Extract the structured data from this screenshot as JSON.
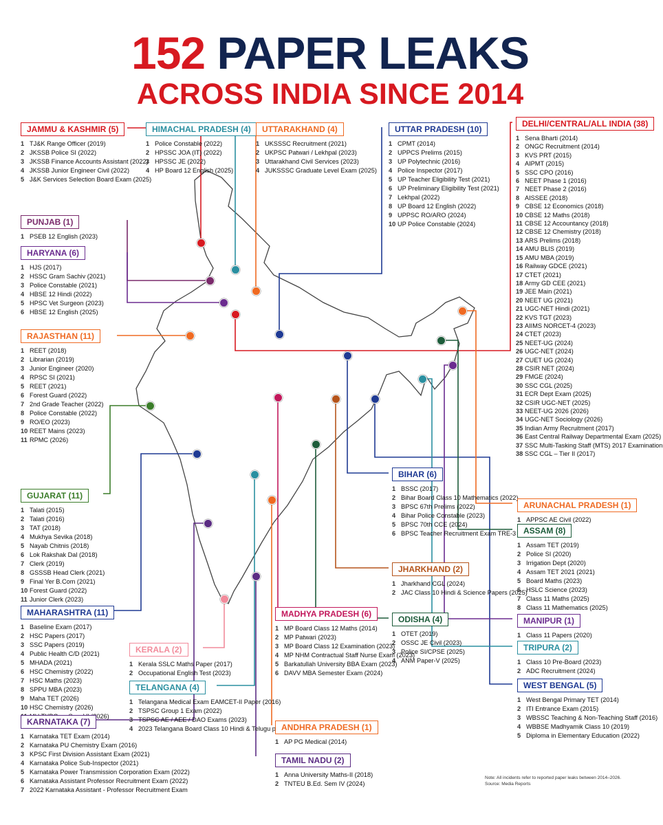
{
  "title": {
    "number": "152",
    "rest": "PAPER LEAKS",
    "subtitle": "ACROSS INDIA SINCE 2014"
  },
  "colors": {
    "title_red": "#d71920",
    "title_navy": "#12244f",
    "jk": "#d71920",
    "punjab": "#7a2a6b",
    "haryana": "#6b2c8f",
    "rajasthan": "#ef6a22",
    "gujarat": "#3b7d2a",
    "maharashtra": "#1f3a93",
    "karnataka": "#5b2c83",
    "kerala": "#f28b9b",
    "telangana": "#2a8fa0",
    "himachal": "#2a8fa0",
    "uttarakhand": "#ef6a22",
    "up": "#1f3a93",
    "delhi": "#d71920",
    "arunachal": "#ef6a22",
    "assam": "#1d5c3a",
    "manipur": "#6b2c8f",
    "tripura": "#2a8fa0",
    "westbengal": "#1f3a93",
    "bihar": "#1f3a93",
    "jharkhand": "#b5541b",
    "odisha": "#1d5c3a",
    "mp": "#c2185b",
    "ap": "#ef6a22",
    "tn": "#5b2c83",
    "map_fill": "#ffffff",
    "map_stroke": "#444444"
  },
  "states": {
    "jk": {
      "name": "JAMMU & KASHMIR (5)",
      "items": [
        {
          "n": "1",
          "text": "TJ&K Range Officer (2019)"
        },
        {
          "n": "2",
          "text": "JKSSB Police SI (2022)"
        },
        {
          "n": "3",
          "text": "JKSSB Finance Accounts Assistant (2022)"
        },
        {
          "n": "4",
          "text": "JKSSB Junior Engineer Civil (2022)"
        },
        {
          "n": "5",
          "text": "J&K Services Selection Board Exam (2025)"
        }
      ]
    },
    "punjab": {
      "name": "PUNJAB (1)",
      "items": [
        {
          "n": "1",
          "text": "PSEB 12 English (2023)"
        }
      ]
    },
    "haryana": {
      "name": "HARYANA (6)",
      "items": [
        {
          "n": "1",
          "text": "HJS (2017)"
        },
        {
          "n": "2",
          "text": "HSSC Gram Sachiv (2021)"
        },
        {
          "n": "3",
          "text": "Police Constable (2021)"
        },
        {
          "n": "4",
          "text": "HBSE 12 Hindi (2022)"
        },
        {
          "n": "5",
          "text": "HPSC Vet Surgeon (2023)"
        },
        {
          "n": "6",
          "text": "HBSE 12 English (2025)"
        }
      ]
    },
    "rajasthan": {
      "name": "RAJASTHAN (11)",
      "items": [
        {
          "n": "1",
          "text": "REET (2018)"
        },
        {
          "n": "2",
          "text": "Librarian (2019)"
        },
        {
          "n": "3",
          "text": "Junior Engineer (2020)"
        },
        {
          "n": "4",
          "text": "RPSC SI (2021)"
        },
        {
          "n": "5",
          "text": "REET (2021)"
        },
        {
          "n": "6",
          "text": "Forest Guard (2022)"
        },
        {
          "n": "7",
          "text": "2nd Grade Teacher (2022)"
        },
        {
          "n": "8",
          "text": "Police Constable (2022)"
        },
        {
          "n": "9",
          "text": "RO/EO (2023)"
        },
        {
          "n": "10",
          "text": "REET Mains (2023)"
        },
        {
          "n": "11",
          "text": "RPMC (2026)"
        }
      ]
    },
    "gujarat": {
      "name": "GUJARAT (11)",
      "items": [
        {
          "n": "1",
          "text": "Talati (2015)"
        },
        {
          "n": "2",
          "text": "Talati (2016)"
        },
        {
          "n": "3",
          "text": "TAT (2018)"
        },
        {
          "n": "4",
          "text": "Mukhya Sevika (2018)"
        },
        {
          "n": "5",
          "text": "Nayab Chitnis (2018)"
        },
        {
          "n": "6",
          "text": "Lok Rakshak Dal (2018)"
        },
        {
          "n": "7",
          "text": "Clerk (2019)"
        },
        {
          "n": "8",
          "text": "GSSSB Head Clerk (2021)"
        },
        {
          "n": "9",
          "text": "Final Yer B.Com (2021)"
        },
        {
          "n": "10",
          "text": "Forest Guard (2022)"
        },
        {
          "n": "11",
          "text": "Junior Clerk (2023)"
        }
      ]
    },
    "maharashtra": {
      "name": "MAHARASHTRA (11)",
      "items": [
        {
          "n": "1",
          "text": "Baseline Exam (2017)"
        },
        {
          "n": "2",
          "text": "HSC Papers (2017)"
        },
        {
          "n": "3",
          "text": "SSC Papers (2019)"
        },
        {
          "n": "4",
          "text": "Public Health C/D (2021)"
        },
        {
          "n": "5",
          "text": "MHADA (2021)"
        },
        {
          "n": "6",
          "text": "HSC Chemistry (2022)"
        },
        {
          "n": "7",
          "text": "HSC Maths (2023)"
        },
        {
          "n": "8",
          "text": "SPPU MBA (2023)"
        },
        {
          "n": "9",
          "text": "Maha TET (2026)"
        },
        {
          "n": "10",
          "text": "HSC Chemistry (2026)"
        },
        {
          "n": "11",
          "text": "MU TYBCom Sem VI (2026)"
        }
      ]
    },
    "karnataka": {
      "name": "KARNATAKA (7)",
      "items": [
        {
          "n": "1",
          "text": "Karnataka TET Exam (2014)"
        },
        {
          "n": "2",
          "text": "Karnataka PU Chemistry Exam (2016)"
        },
        {
          "n": "3",
          "text": "KPSC First Division Assistant Exam (2021)"
        },
        {
          "n": "4",
          "text": "Karnataka Police Sub-Inspector (2021)"
        },
        {
          "n": "5",
          "text": "Karnataka Power Transmission Corporation Exam (2022)"
        },
        {
          "n": "6",
          "text": "Karnataka Assistant Professor Recruitment Exam (2022)"
        },
        {
          "n": "7",
          "text": "2022 Karnataka Assistant - Professor Recruitment Exam"
        }
      ]
    },
    "kerala": {
      "name": "KERALA (2)",
      "items": [
        {
          "n": "1",
          "text": "Kerala SSLC Maths Paper (2017)"
        },
        {
          "n": "2",
          "text": "Occupational English Test (2023)"
        }
      ]
    },
    "telangana": {
      "name": "TELANGANA (4)",
      "items": [
        {
          "n": "1",
          "text": "Telangana Medical Exam EAMCET-II Paper (2016)"
        },
        {
          "n": "2",
          "text": "TSPSC Group 1 Exam (2022)"
        },
        {
          "n": "3",
          "text": "TSPSC AE / AEE / DAO Exams (2023)"
        },
        {
          "n": "4",
          "text": "2023 Telangana Board Class 10 Hindi & Telugu paper leak"
        }
      ]
    },
    "himachal": {
      "name": "HIMACHAL PRADESH (4)",
      "items": [
        {
          "n": "1",
          "text": "Police Constable (2022)"
        },
        {
          "n": "2",
          "text": "HPSSC JOA (IT) (2022)"
        },
        {
          "n": "3",
          "text": "HPSSC JE (2022)"
        },
        {
          "n": "4",
          "text": "HP Board 12 English (2025)"
        }
      ]
    },
    "uttarakhand": {
      "name": "UTTARAKHAND (4)",
      "items": [
        {
          "n": "1",
          "text": "UKSSSC Recruitment (2021)"
        },
        {
          "n": "2",
          "text": "UKPSC Patwari / Lekhpal (2023)"
        },
        {
          "n": "3",
          "text": "Uttarakhand Civil Services (2023)"
        },
        {
          "n": "4",
          "text": "JUKSSSC Graduate Level Exam (2025)"
        }
      ]
    },
    "up": {
      "name": "UTTAR PRADESH (10)",
      "items": [
        {
          "n": "1",
          "text": "CPMT (2014)"
        },
        {
          "n": "2",
          "text": "UPPCS Prelims (2015)"
        },
        {
          "n": "3",
          "text": "UP Polytechnic (2016)"
        },
        {
          "n": "4",
          "text": "Police Inspector (2017)"
        },
        {
          "n": "5",
          "text": "UP Teacher Eligibility Test (2021)"
        },
        {
          "n": "6",
          "text": "UP Preliminary Eligibility Test (2021)"
        },
        {
          "n": "7",
          "text": "Lekhpal (2022)"
        },
        {
          "n": "8",
          "text": "UP Board 12 English (2022)"
        },
        {
          "n": "9",
          "text": "UPPSC RO/ARO (2024)"
        },
        {
          "n": "10",
          "text": "UP Police Constable (2024)"
        }
      ]
    },
    "delhi": {
      "name": "DELHI/CENTRAL/ALL INDIA (38)",
      "items": [
        {
          "n": "1",
          "text": "Sena Bharti (2014)"
        },
        {
          "n": "2",
          "text": "ONGC Recruitment (2014)"
        },
        {
          "n": "3",
          "text": "KVS PRT (2015)"
        },
        {
          "n": "4",
          "text": "AIPMT (2015)"
        },
        {
          "n": "5",
          "text": "SSC CPO (2016)"
        },
        {
          "n": "6",
          "text": "NEET Phase 1 (2016)"
        },
        {
          "n": "7",
          "text": "NEET Phase 2 (2016)"
        },
        {
          "n": "8",
          "text": "AISSEE (2018)"
        },
        {
          "n": "9",
          "text": "CBSE 12 Economics (2018)"
        },
        {
          "n": "10",
          "text": "CBSE 12 Maths (2018)"
        },
        {
          "n": "11",
          "text": "CBSE 12 Accountancy (2018)"
        },
        {
          "n": "12",
          "text": "CBSE 12 Chemistry (2018)"
        },
        {
          "n": "13",
          "text": "ARS Prelims (2018)"
        },
        {
          "n": "14",
          "text": "AMU BLIS (2019)"
        },
        {
          "n": "15",
          "text": "AMU MBA (2019)"
        },
        {
          "n": "16",
          "text": "Railway GDCE (2021)"
        },
        {
          "n": "17",
          "text": "CTET (2021)"
        },
        {
          "n": "18",
          "text": "Army GD CEE (2021)"
        },
        {
          "n": "19",
          "text": "JEE Main (2021)"
        },
        {
          "n": "20",
          "text": "NEET UG (2021)"
        },
        {
          "n": "21",
          "text": "UGC-NET Hindi (2021)"
        },
        {
          "n": "22",
          "text": "KVS TGT (2023)"
        },
        {
          "n": "23",
          "text": "AIIMS NORCET-4 (2023)"
        },
        {
          "n": "24",
          "text": "CTET (2023)"
        },
        {
          "n": "25",
          "text": "NEET-UG (2024)"
        },
        {
          "n": "26",
          "text": "UGC-NET (2024)"
        },
        {
          "n": "27",
          "text": "CUET UG (2024)"
        },
        {
          "n": "28",
          "text": "CSIR NET (2024)"
        },
        {
          "n": "29",
          "text": "FMGE (2024)"
        },
        {
          "n": "30",
          "text": "SSC CGL (2025)"
        },
        {
          "n": "31",
          "text": "ECR Dept Exam (2025)"
        },
        {
          "n": "32",
          "text": "CSIR UGC-NET (2025)"
        },
        {
          "n": "33",
          "text": "NEET-UG 2026 (2026)"
        },
        {
          "n": "34",
          "text": "UGC-NET Sociology (2026)"
        },
        {
          "n": "35",
          "text": "Indian Army Recruitment (2017)"
        },
        {
          "n": "36",
          "text": "East Central Railway Departmental Exam (2025)"
        },
        {
          "n": "37",
          "text": "SSC Multi-Tasking Staff (MTS) 2017 Examination"
        },
        {
          "n": "38",
          "text": "SSC CGL – Tier II (2017)"
        }
      ]
    },
    "arunachal": {
      "name": "ARUNACHAL PRADESH (1)",
      "items": [
        {
          "n": "1",
          "text": "APPSC AE Civil (2022)"
        }
      ]
    },
    "assam": {
      "name": "ASSAM (8)",
      "items": [
        {
          "n": "1",
          "text": "Assam TET (2019)"
        },
        {
          "n": "2",
          "text": "Police SI (2020)"
        },
        {
          "n": "3",
          "text": "Irrigation Dept (2020)"
        },
        {
          "n": "4",
          "text": "Assam TET 2021 (2021)"
        },
        {
          "n": "5",
          "text": "Board Maths (2023)"
        },
        {
          "n": "6",
          "text": "HSLC Science (2023)"
        },
        {
          "n": "7",
          "text": "Class 11 Maths (2025)"
        },
        {
          "n": "8",
          "text": "Class 11 Mathematics (2025)"
        }
      ]
    },
    "manipur": {
      "name": "MANIPUR (1)",
      "items": [
        {
          "n": "1",
          "text": "Class 11 Papers (2020)"
        }
      ]
    },
    "tripura": {
      "name": "TRIPURA (2)",
      "items": [
        {
          "n": "1",
          "text": "Class 10 Pre-Board (2023)"
        },
        {
          "n": "2",
          "text": "ADC Recruitment (2024)"
        }
      ]
    },
    "westbengal": {
      "name": "WEST BENGAL (5)",
      "items": [
        {
          "n": "1",
          "text": "West Bengal Primary TET (2014)"
        },
        {
          "n": "2",
          "text": "ITI Entrance Exam (2015)"
        },
        {
          "n": "3",
          "text": "WBSSC Teaching & Non-Teaching Staff (2016)"
        },
        {
          "n": "4",
          "text": "WBBSE Madhyamik Class 10 (2019)"
        },
        {
          "n": "5",
          "text": "Diploma in Elementary Education (2022)"
        }
      ]
    },
    "bihar": {
      "name": "BIHAR (6)",
      "items": [
        {
          "n": "1",
          "text": "BSSC (2017)"
        },
        {
          "n": "2",
          "text": "Bihar Board Class 10 Mathematics (2022)"
        },
        {
          "n": "3",
          "text": "BPSC 67th Prelims (2022)"
        },
        {
          "n": "4",
          "text": "Bihar Police Constable (2023)"
        },
        {
          "n": "5",
          "text": "BPSC 70th CCE (2024)"
        },
        {
          "n": "6",
          "text": "BPSC Teacher Recruitment Exam TRE-3 (2024)"
        }
      ]
    },
    "jharkhand": {
      "name": "JHARKHAND (2)",
      "items": [
        {
          "n": "1",
          "text": "Jharkhand CGL (2024)"
        },
        {
          "n": "2",
          "text": "JAC Class 10 Hindi & Science Papers (2025)"
        }
      ]
    },
    "odisha": {
      "name": "ODISHA (4)",
      "items": [
        {
          "n": "1",
          "text": "OTET (2019)"
        },
        {
          "n": "2",
          "text": "OSSC JE Civil (2023)"
        },
        {
          "n": "3",
          "text": "Police SI/CPSE (2025)"
        },
        {
          "n": "4",
          "text": "ANM Paper-V (2025)"
        }
      ]
    },
    "mp": {
      "name": "MADHYA PRADESH (6)",
      "items": [
        {
          "n": "1",
          "text": "MP Board Class 12 Maths (2014)"
        },
        {
          "n": "2",
          "text": "MP Patwari (2023)"
        },
        {
          "n": "3",
          "text": "MP Board Class 12 Examination (2023)"
        },
        {
          "n": "4",
          "text": "MP NHM Contractual Staff Nurse Exam (2023)"
        },
        {
          "n": "5",
          "text": "Barkatullah University BBA Exam (2023)"
        },
        {
          "n": "6",
          "text": "DAVV MBA Semester Exam (2024)"
        }
      ]
    },
    "ap": {
      "name": "ANDHRA PRADESH (1)",
      "items": [
        {
          "n": "1",
          "text": "AP PG Medical (2014)"
        }
      ]
    },
    "tn": {
      "name": "TAMIL NADU (2)",
      "items": [
        {
          "n": "1",
          "text": "Anna University Maths-II (2018)"
        },
        {
          "n": "2",
          "text": "TNTEU B.Ed. Sem IV (2024)"
        }
      ]
    }
  },
  "footer": {
    "note": "Note: All incidents refer to reported paper leaks between 2014–2026.",
    "source": "Source: Media Reports"
  }
}
